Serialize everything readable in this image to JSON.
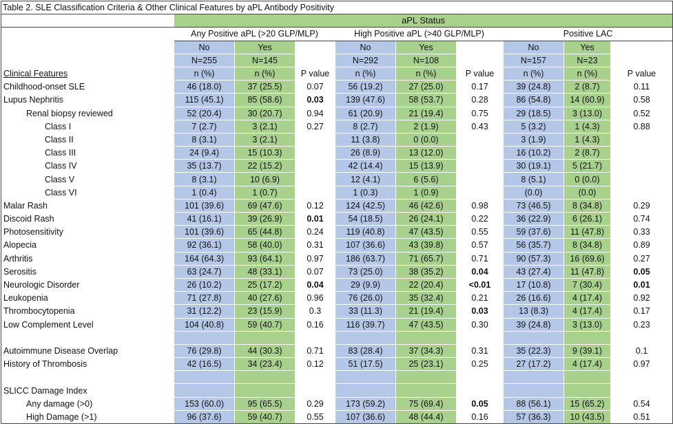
{
  "title": "Table 2. SLE Classification Criteria & Other Clinical Features by aPL Antibody Positivity",
  "status_header": "aPL Status",
  "groups": [
    {
      "label": "Any Positive aPL (>20 GLP/MLP)",
      "no": "No",
      "yes": "Yes",
      "n_no": "N=255",
      "n_yes": "N=145"
    },
    {
      "label": "High Positive aPL  (>40 GLP/MLP)",
      "no": "No",
      "yes": "Yes",
      "n_no": "N=292",
      "n_yes": "N=108"
    },
    {
      "label": "Positive LAC",
      "no": "No",
      "yes": "Yes",
      "n_no": "N=157",
      "n_yes": "N=23"
    }
  ],
  "col_headers": {
    "features": "Clinical Features",
    "npct": "n (%)",
    "pvalue": "P value"
  },
  "rows": [
    {
      "label": "Childhood-onset SLE",
      "indent": 0,
      "cells": [
        "46 (18.0)",
        "37 (25.5)",
        "0.07",
        "56 (19.2)",
        "27 (25.0)",
        "0.17",
        "39 (24.8)",
        "2 (8.7)",
        "0.11"
      ],
      "bold": []
    },
    {
      "label": "Lupus Nephritis",
      "indent": 0,
      "cells": [
        "115 (45.1)",
        "85 (58.6)",
        "0.03",
        "139 (47.6)",
        "58 (53.7)",
        "0.28",
        "86 (54.8)",
        "14 (60.9)",
        "0.58"
      ],
      "bold": [
        2
      ]
    },
    {
      "label": "Renal biopsy reviewed",
      "indent": 1,
      "cells": [
        "52 (20.4)",
        "30 (20.7)",
        "0.94",
        "61 (20.9)",
        "21 (19.4)",
        "0.75",
        "29 (18.5)",
        "3 (13.0)",
        "0.52"
      ],
      "bold": []
    },
    {
      "label": "Class I",
      "indent": 2,
      "cells": [
        "7 (2.7)",
        "3 (2.1)",
        "0.27",
        "8 (2.7)",
        "2 (1.9)",
        "0.43",
        "5 (3.2)",
        "1 (4.3)",
        "0.88"
      ],
      "bold": []
    },
    {
      "label": "Class II",
      "indent": 2,
      "cells": [
        "8 (3.1)",
        "3 (2.1)",
        "",
        "11 (3.8)",
        "0 (0.0)",
        "",
        "3 (1.9)",
        "1 (4.3)",
        ""
      ],
      "bold": []
    },
    {
      "label": "Class III",
      "indent": 2,
      "cells": [
        "24 (9.4)",
        "15 (10.3)",
        "",
        "26 (8.9)",
        "13 (12.0)",
        "",
        "16 (10.2)",
        "2 (8.7)",
        ""
      ],
      "bold": []
    },
    {
      "label": "Class IV",
      "indent": 2,
      "cells": [
        "35 (13.7)",
        "22 (15.2)",
        "",
        "42 (14.4)",
        "15 (13.9)",
        "",
        "30 (19.1)",
        "5 (21.7)",
        ""
      ],
      "bold": []
    },
    {
      "label": "Class V",
      "indent": 2,
      "cells": [
        "8 (3.1)",
        "10 (6.9)",
        "",
        "12 (4.1)",
        "6 (5.6)",
        "",
        "8 (5.1)",
        "0 (0.0)",
        ""
      ],
      "bold": []
    },
    {
      "label": "Class VI",
      "indent": 2,
      "cells": [
        "1 (0.4)",
        "1 (0.7)",
        "",
        "1 (0.3)",
        "1 (0.9)",
        "",
        "(0.0)",
        "(0.0)",
        ""
      ],
      "bold": []
    },
    {
      "label": "Malar Rash",
      "indent": 0,
      "cells": [
        "101 (39.6)",
        "69 (47.6)",
        "0.12",
        "124 (42.5)",
        "46 (42.6)",
        "0.98",
        "73 (46.5)",
        "8 (34.8)",
        "0.29"
      ],
      "bold": []
    },
    {
      "label": "Discoid Rash",
      "indent": 0,
      "cells": [
        "41 (16.1)",
        "39 (26.9)",
        "0.01",
        "54 (18.5)",
        "26 (24.1)",
        "0.22",
        "36 (22.9)",
        "6 (26.1)",
        "0.74"
      ],
      "bold": [
        2
      ]
    },
    {
      "label": "Photosensitivity",
      "indent": 0,
      "cells": [
        "101 (39.6)",
        "65 (44.8)",
        "0.24",
        "119 (40.8)",
        "47 (43.5)",
        "0.55",
        "59 (37.6)",
        "11 (47.8)",
        "0.33"
      ],
      "bold": []
    },
    {
      "label": "Alopecia",
      "indent": 0,
      "cells": [
        "92 (36.1)",
        "58 (40.0)",
        "0.31",
        "107 (36.6)",
        "43 (39.8)",
        "0.57",
        "56 (35.7)",
        "8 (34.8)",
        "0.89"
      ],
      "bold": []
    },
    {
      "label": "Arthritis",
      "indent": 0,
      "cells": [
        "164 (64.3)",
        "93 (64.1)",
        "0.97",
        "186 (63.7)",
        "71 (65.7)",
        "0.71",
        "90 (57.3)",
        "16 (69.6)",
        "0.27"
      ],
      "bold": []
    },
    {
      "label": "Serositis",
      "indent": 0,
      "cells": [
        "63 (24.7)",
        "48 (33.1)",
        "0.07",
        "73 (25.0)",
        "38 (35.2)",
        "0.04",
        "43 (27.4)",
        "11 (47.8)",
        "0.05"
      ],
      "bold": [
        5,
        8
      ]
    },
    {
      "label": "Neurologic Disorder",
      "indent": 0,
      "cells": [
        "26 (10.2)",
        "25 (17.2)",
        "0.04",
        "29 (9.9)",
        "22 (20.4)",
        "<0.01",
        "17 (10.8)",
        "7 (30.4)",
        "0.01"
      ],
      "bold": [
        2,
        5,
        8
      ]
    },
    {
      "label": "Leukopenia",
      "indent": 0,
      "cells": [
        "71 (27.8)",
        "40 (27.6)",
        "0.96",
        "76 (26.0)",
        "35 (32.4)",
        "0.21",
        "26 (16.6)",
        "4 (17.4)",
        "0.92"
      ],
      "bold": []
    },
    {
      "label": "Thrombocytopenia",
      "indent": 0,
      "cells": [
        "31 (12.2)",
        "23 (15.9)",
        "0.3",
        "33 (11.3)",
        "21 (19.4)",
        "0.03",
        "13 (8.3)",
        "4 (17.4)",
        "0.17"
      ],
      "bold": [
        5
      ]
    },
    {
      "label": "Low Complement Level",
      "indent": 0,
      "cells": [
        "104 (40.8)",
        "59 (40.7)",
        "0.16",
        "116 (39.7)",
        "47 (43.5)",
        "0.30",
        "39 (24.8)",
        "3 (13.0)",
        "0.23"
      ],
      "bold": []
    },
    {
      "label": "",
      "indent": 0,
      "cells": [
        "",
        "",
        "",
        "",
        "",
        "",
        "",
        "",
        ""
      ],
      "bold": [],
      "spacer": true
    },
    {
      "label": "Autoimmune Disease Overlap",
      "indent": 0,
      "cells": [
        "76 (29.8)",
        "44 (30.3)",
        "0.71",
        "83 (28.4)",
        "37 (34.3)",
        "0.31",
        "35 (22.3)",
        "9 (39.1)",
        "0.1"
      ],
      "bold": []
    },
    {
      "label": "History of Thrombosis",
      "indent": 0,
      "cells": [
        "42 (16.5)",
        "34 (23.4)",
        "0.12",
        "51 (17.5)",
        "25 (23.1)",
        "0.25",
        "27 (17.2)",
        "4 (17.4)",
        "0.97"
      ],
      "bold": []
    },
    {
      "label": "",
      "indent": 0,
      "cells": [
        "",
        "",
        "",
        "",
        "",
        "",
        "",
        "",
        ""
      ],
      "bold": [],
      "spacer": true
    },
    {
      "label": "SLICC Damage Index",
      "indent": 0,
      "cells": [
        "",
        "",
        "",
        "",
        "",
        "",
        "",
        "",
        ""
      ],
      "bold": []
    },
    {
      "label": "Any damage (>0)",
      "indent": 1,
      "cells": [
        "153 (60.0)",
        "95 (65.5)",
        "0.29",
        "173 (59.2)",
        "75 (69.4)",
        "0.05",
        "88 (56.1)",
        "15 (65.2)",
        "0.54"
      ],
      "bold": [
        5
      ]
    },
    {
      "label": "High Damage (>1)",
      "indent": 1,
      "cells": [
        "96 (37.6)",
        "59 (40.7)",
        "0.55",
        "107 (36.6)",
        "48 (44.4)",
        "0.16",
        "57 (36.3)",
        "10 (43.5)",
        "0.51"
      ],
      "bold": []
    }
  ]
}
